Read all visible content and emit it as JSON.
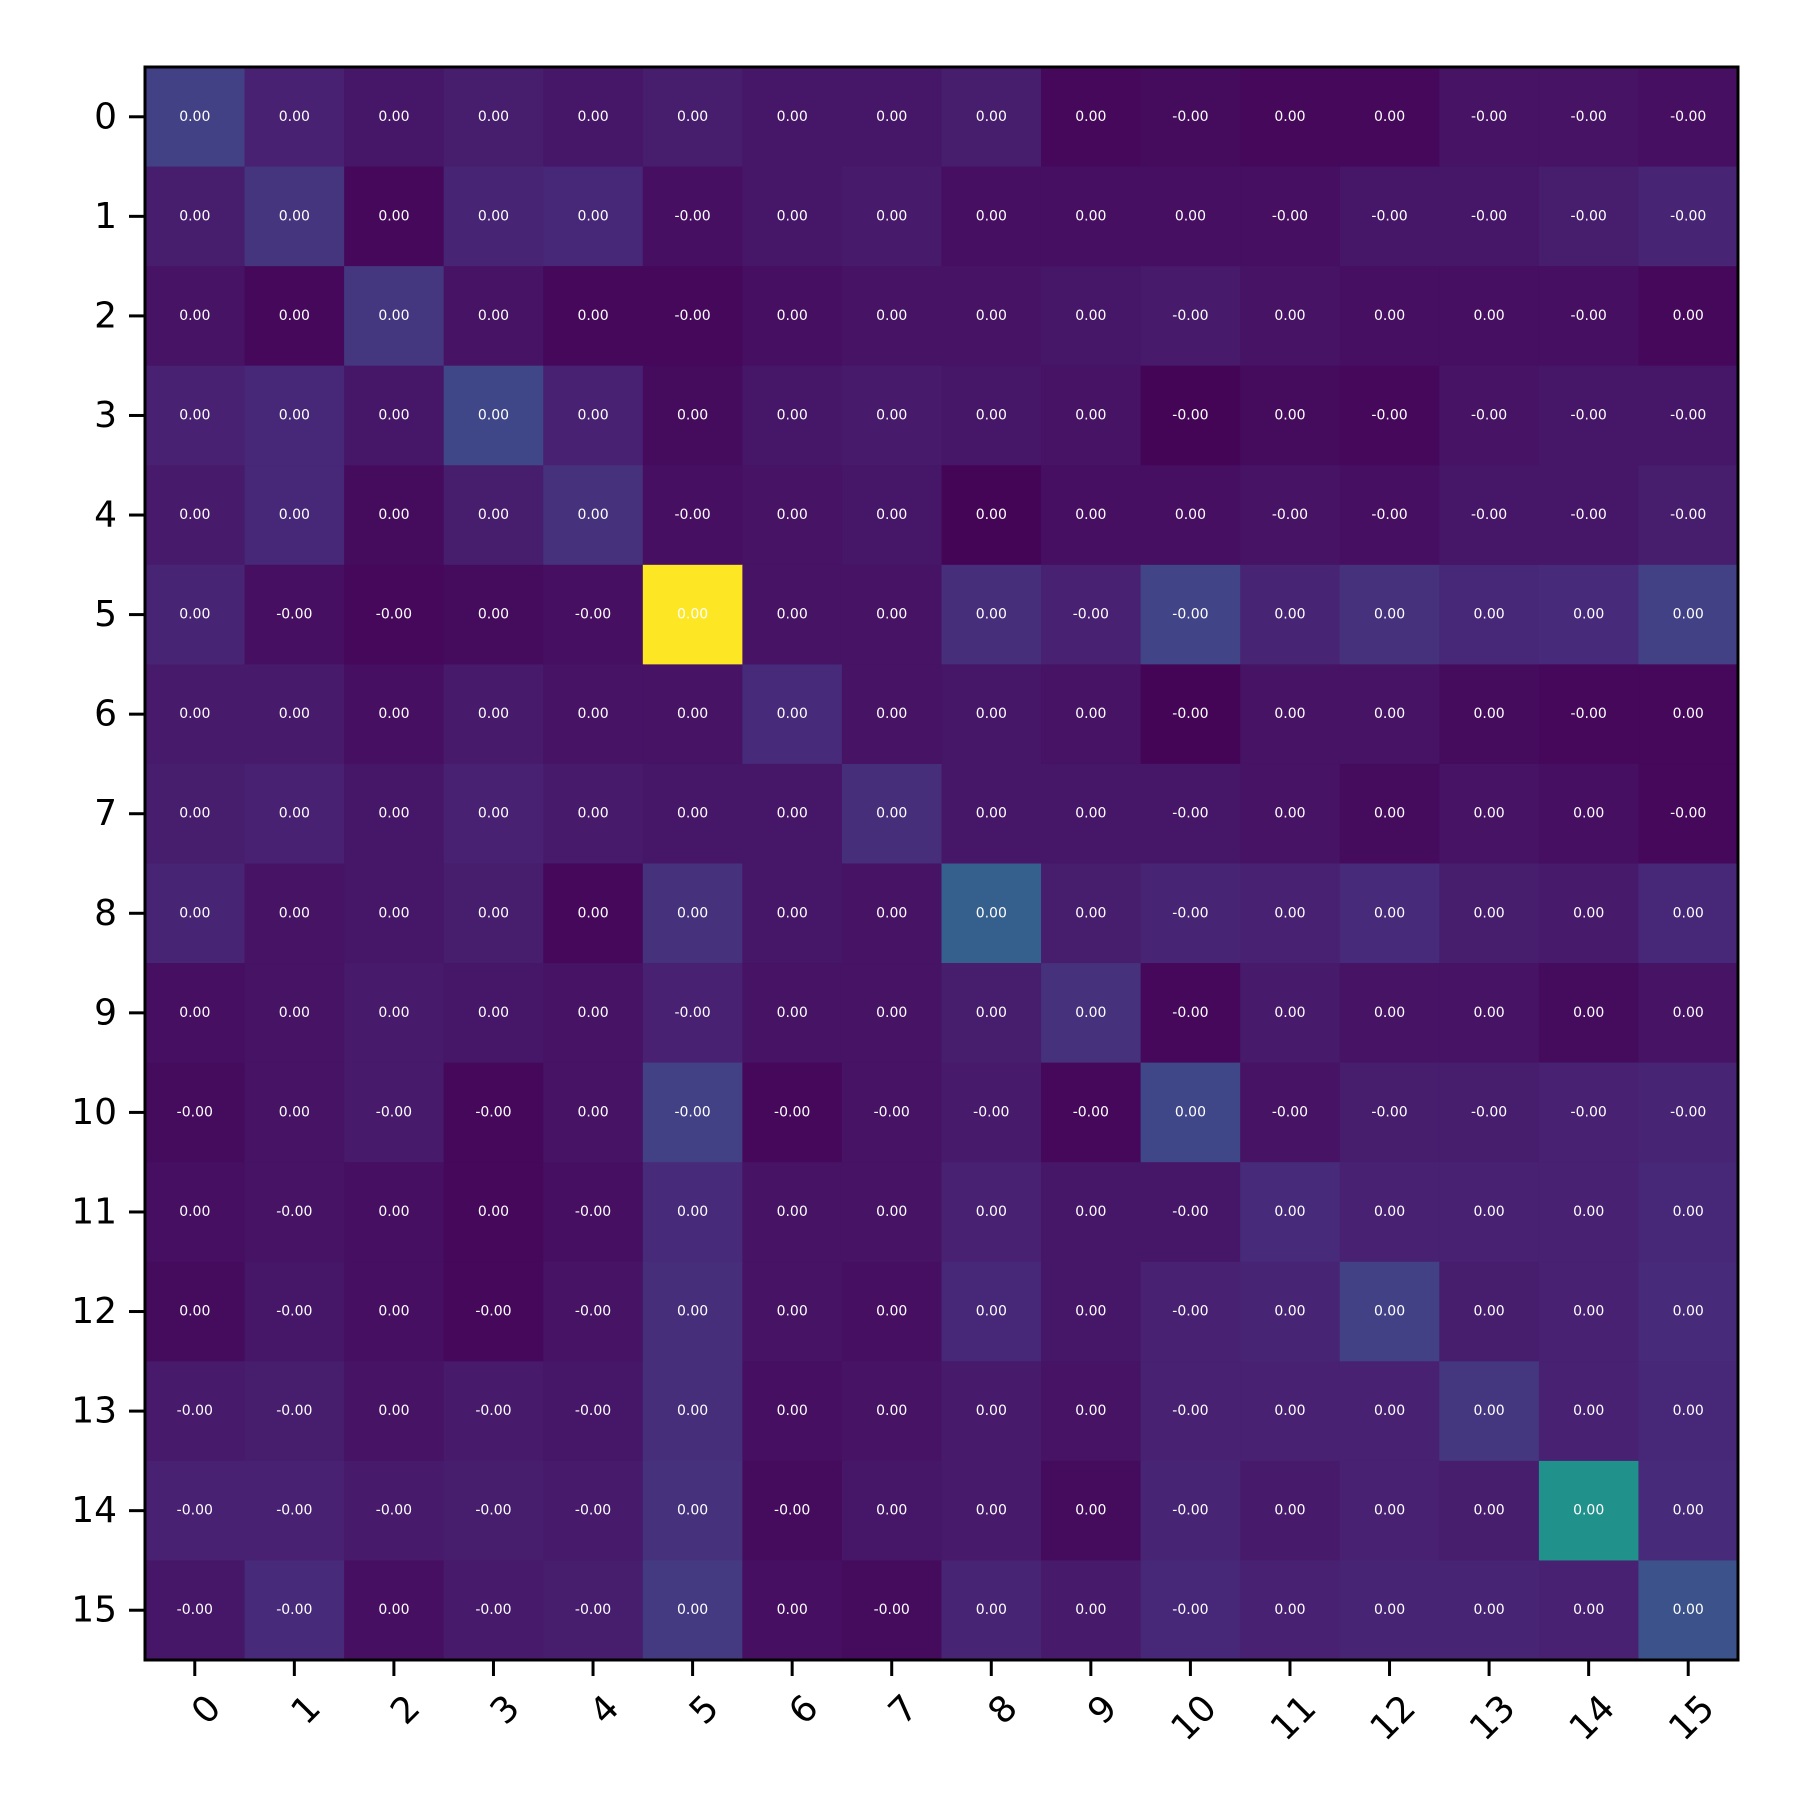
{
  "chart_data": {
    "type": "heatmap",
    "title": "",
    "xlabel": "",
    "ylabel": "",
    "x_tick_labels": [
      "0",
      "1",
      "2",
      "3",
      "4",
      "5",
      "6",
      "7",
      "8",
      "9",
      "10",
      "11",
      "12",
      "13",
      "14",
      "15"
    ],
    "y_tick_labels": [
      "0",
      "1",
      "2",
      "3",
      "4",
      "5",
      "6",
      "7",
      "8",
      "9",
      "10",
      "11",
      "12",
      "13",
      "14",
      "15"
    ],
    "colormap": "viridis",
    "color_range": [
      0,
      1
    ],
    "intensity": [
      [
        0.19,
        0.09,
        0.06,
        0.08,
        0.06,
        0.08,
        0.06,
        0.06,
        0.08,
        0.02,
        0.03,
        0.02,
        0.02,
        0.05,
        0.05,
        0.04
      ],
      [
        0.08,
        0.15,
        0.02,
        0.1,
        0.11,
        0.04,
        0.06,
        0.07,
        0.04,
        0.04,
        0.04,
        0.04,
        0.06,
        0.06,
        0.08,
        0.1
      ],
      [
        0.05,
        0.02,
        0.16,
        0.05,
        0.02,
        0.02,
        0.04,
        0.05,
        0.05,
        0.06,
        0.07,
        0.05,
        0.04,
        0.04,
        0.04,
        0.02
      ],
      [
        0.09,
        0.11,
        0.06,
        0.21,
        0.09,
        0.03,
        0.06,
        0.07,
        0.06,
        0.05,
        0.01,
        0.03,
        0.02,
        0.05,
        0.06,
        0.06
      ],
      [
        0.07,
        0.11,
        0.03,
        0.08,
        0.14,
        0.04,
        0.05,
        0.06,
        0.01,
        0.04,
        0.04,
        0.05,
        0.04,
        0.06,
        0.06,
        0.08
      ],
      [
        0.1,
        0.04,
        0.02,
        0.03,
        0.04,
        1.0,
        0.05,
        0.05,
        0.13,
        0.09,
        0.2,
        0.1,
        0.14,
        0.11,
        0.12,
        0.19
      ],
      [
        0.07,
        0.07,
        0.04,
        0.07,
        0.05,
        0.05,
        0.12,
        0.05,
        0.06,
        0.05,
        0.01,
        0.05,
        0.05,
        0.03,
        0.02,
        0.02
      ],
      [
        0.08,
        0.09,
        0.06,
        0.09,
        0.07,
        0.06,
        0.06,
        0.13,
        0.06,
        0.06,
        0.06,
        0.05,
        0.03,
        0.05,
        0.04,
        0.02
      ],
      [
        0.1,
        0.05,
        0.06,
        0.08,
        0.02,
        0.14,
        0.06,
        0.05,
        0.3,
        0.08,
        0.1,
        0.09,
        0.12,
        0.08,
        0.07,
        0.11
      ],
      [
        0.04,
        0.05,
        0.07,
        0.06,
        0.05,
        0.09,
        0.05,
        0.05,
        0.08,
        0.14,
        0.02,
        0.07,
        0.05,
        0.05,
        0.03,
        0.05
      ],
      [
        0.03,
        0.05,
        0.07,
        0.02,
        0.05,
        0.19,
        0.02,
        0.05,
        0.07,
        0.02,
        0.21,
        0.05,
        0.08,
        0.08,
        0.09,
        0.1
      ],
      [
        0.04,
        0.05,
        0.04,
        0.02,
        0.04,
        0.12,
        0.05,
        0.05,
        0.09,
        0.06,
        0.06,
        0.12,
        0.09,
        0.09,
        0.09,
        0.11
      ],
      [
        0.03,
        0.06,
        0.04,
        0.02,
        0.05,
        0.13,
        0.05,
        0.04,
        0.11,
        0.06,
        0.09,
        0.1,
        0.19,
        0.08,
        0.09,
        0.12
      ],
      [
        0.07,
        0.08,
        0.05,
        0.07,
        0.06,
        0.13,
        0.04,
        0.05,
        0.07,
        0.05,
        0.09,
        0.09,
        0.09,
        0.16,
        0.09,
        0.11
      ],
      [
        0.09,
        0.09,
        0.07,
        0.08,
        0.07,
        0.14,
        0.03,
        0.06,
        0.07,
        0.03,
        0.1,
        0.07,
        0.09,
        0.08,
        0.5,
        0.12
      ],
      [
        0.06,
        0.12,
        0.04,
        0.07,
        0.08,
        0.17,
        0.04,
        0.03,
        0.1,
        0.07,
        0.11,
        0.09,
        0.1,
        0.1,
        0.09,
        0.25
      ]
    ],
    "cell_labels": [
      [
        "0.00",
        "0.00",
        "0.00",
        "0.00",
        "0.00",
        "0.00",
        "0.00",
        "0.00",
        "0.00",
        "0.00",
        "-0.00",
        "0.00",
        "0.00",
        "-0.00",
        "-0.00",
        "-0.00"
      ],
      [
        "0.00",
        "0.00",
        "0.00",
        "0.00",
        "0.00",
        "-0.00",
        "0.00",
        "0.00",
        "0.00",
        "0.00",
        "0.00",
        "-0.00",
        "-0.00",
        "-0.00",
        "-0.00",
        "-0.00"
      ],
      [
        "0.00",
        "0.00",
        "0.00",
        "0.00",
        "0.00",
        "-0.00",
        "0.00",
        "0.00",
        "0.00",
        "0.00",
        "-0.00",
        "0.00",
        "0.00",
        "0.00",
        "-0.00",
        "0.00"
      ],
      [
        "0.00",
        "0.00",
        "0.00",
        "0.00",
        "0.00",
        "0.00",
        "0.00",
        "0.00",
        "0.00",
        "0.00",
        "-0.00",
        "0.00",
        "-0.00",
        "-0.00",
        "-0.00",
        "-0.00"
      ],
      [
        "0.00",
        "0.00",
        "0.00",
        "0.00",
        "0.00",
        "-0.00",
        "0.00",
        "0.00",
        "0.00",
        "0.00",
        "0.00",
        "-0.00",
        "-0.00",
        "-0.00",
        "-0.00",
        "-0.00"
      ],
      [
        "0.00",
        "-0.00",
        "-0.00",
        "0.00",
        "-0.00",
        "0.00",
        "0.00",
        "0.00",
        "0.00",
        "-0.00",
        "-0.00",
        "0.00",
        "0.00",
        "0.00",
        "0.00",
        "0.00"
      ],
      [
        "0.00",
        "0.00",
        "0.00",
        "0.00",
        "0.00",
        "0.00",
        "0.00",
        "0.00",
        "0.00",
        "0.00",
        "-0.00",
        "0.00",
        "0.00",
        "0.00",
        "-0.00",
        "0.00"
      ],
      [
        "0.00",
        "0.00",
        "0.00",
        "0.00",
        "0.00",
        "0.00",
        "0.00",
        "0.00",
        "0.00",
        "0.00",
        "-0.00",
        "0.00",
        "0.00",
        "0.00",
        "0.00",
        "-0.00"
      ],
      [
        "0.00",
        "0.00",
        "0.00",
        "0.00",
        "0.00",
        "0.00",
        "0.00",
        "0.00",
        "0.00",
        "0.00",
        "-0.00",
        "0.00",
        "0.00",
        "0.00",
        "0.00",
        "0.00"
      ],
      [
        "0.00",
        "0.00",
        "0.00",
        "0.00",
        "0.00",
        "-0.00",
        "0.00",
        "0.00",
        "0.00",
        "0.00",
        "-0.00",
        "0.00",
        "0.00",
        "0.00",
        "0.00",
        "0.00"
      ],
      [
        "-0.00",
        "0.00",
        "-0.00",
        "-0.00",
        "0.00",
        "-0.00",
        "-0.00",
        "-0.00",
        "-0.00",
        "-0.00",
        "0.00",
        "-0.00",
        "-0.00",
        "-0.00",
        "-0.00",
        "-0.00"
      ],
      [
        "0.00",
        "-0.00",
        "0.00",
        "0.00",
        "-0.00",
        "0.00",
        "0.00",
        "0.00",
        "0.00",
        "0.00",
        "-0.00",
        "0.00",
        "0.00",
        "0.00",
        "0.00",
        "0.00"
      ],
      [
        "0.00",
        "-0.00",
        "0.00",
        "-0.00",
        "-0.00",
        "0.00",
        "0.00",
        "0.00",
        "0.00",
        "0.00",
        "-0.00",
        "0.00",
        "0.00",
        "0.00",
        "0.00",
        "0.00"
      ],
      [
        "-0.00",
        "-0.00",
        "0.00",
        "-0.00",
        "-0.00",
        "0.00",
        "0.00",
        "0.00",
        "0.00",
        "0.00",
        "-0.00",
        "0.00",
        "0.00",
        "0.00",
        "0.00",
        "0.00"
      ],
      [
        "-0.00",
        "-0.00",
        "-0.00",
        "-0.00",
        "-0.00",
        "0.00",
        "-0.00",
        "0.00",
        "0.00",
        "0.00",
        "-0.00",
        "0.00",
        "0.00",
        "0.00",
        "0.00",
        "0.00"
      ],
      [
        "-0.00",
        "-0.00",
        "0.00",
        "-0.00",
        "-0.00",
        "0.00",
        "0.00",
        "-0.00",
        "0.00",
        "0.00",
        "-0.00",
        "0.00",
        "0.00",
        "0.00",
        "0.00",
        "0.00"
      ]
    ],
    "grid": false,
    "legend": "none"
  }
}
